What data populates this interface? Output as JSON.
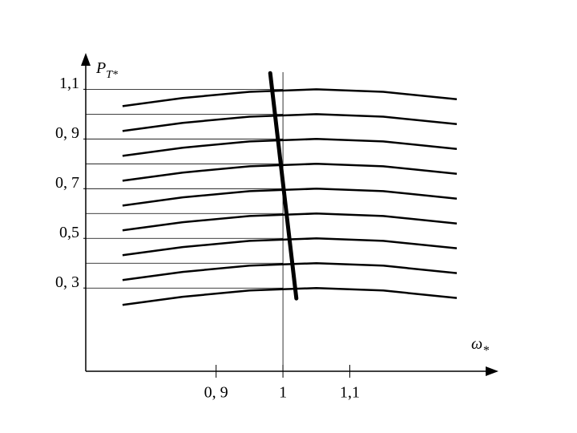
{
  "chart_data": {
    "type": "line",
    "y_label": {
      "base": "P",
      "sub": "T*"
    },
    "x_label": {
      "base": "ω",
      "sub": "*"
    },
    "xlim": [
      0.705,
      1.32
    ],
    "ylim": [
      -0.035,
      1.24
    ],
    "xticks": [
      {
        "value": 0.9,
        "label": "0, 9"
      },
      {
        "value": 1,
        "label": "1"
      },
      {
        "value": 1.1,
        "label": "1,1"
      }
    ],
    "yticks": [
      {
        "value": 0.3,
        "label": "0, 3"
      },
      {
        "value": 0.5,
        "label": "0,5"
      },
      {
        "value": 0.7,
        "label": "0, 7"
      },
      {
        "value": 0.9,
        "label": "0, 9"
      },
      {
        "value": 1.1,
        "label": "1,1"
      }
    ],
    "hlines": [
      0.3,
      0.4,
      0.5,
      0.6,
      0.7,
      0.8,
      0.9,
      1.0,
      1.1
    ],
    "vline": 1,
    "x": [
      0.76,
      0.85,
      0.95,
      1.05,
      1.15,
      1.26
    ],
    "color": "#000",
    "series": [
      {
        "values": [
          0.232,
          0.265,
          0.29,
          0.3,
          0.29,
          0.26
        ]
      },
      {
        "values": [
          0.332,
          0.365,
          0.39,
          0.4,
          0.39,
          0.36
        ]
      },
      {
        "values": [
          0.432,
          0.465,
          0.49,
          0.5,
          0.49,
          0.46
        ]
      },
      {
        "values": [
          0.532,
          0.565,
          0.59,
          0.6,
          0.59,
          0.56
        ]
      },
      {
        "values": [
          0.632,
          0.665,
          0.69,
          0.7,
          0.69,
          0.66
        ]
      },
      {
        "values": [
          0.732,
          0.765,
          0.79,
          0.8,
          0.79,
          0.76
        ]
      },
      {
        "values": [
          0.832,
          0.865,
          0.89,
          0.9,
          0.89,
          0.86
        ]
      },
      {
        "values": [
          0.932,
          0.965,
          0.99,
          1.0,
          0.99,
          0.96
        ]
      },
      {
        "values": [
          1.032,
          1.065,
          1.09,
          1.1,
          1.09,
          1.06
        ]
      }
    ],
    "operating_line": {
      "x": [
        0.981,
        1.02
      ],
      "values": [
        1.165,
        0.258
      ]
    }
  }
}
